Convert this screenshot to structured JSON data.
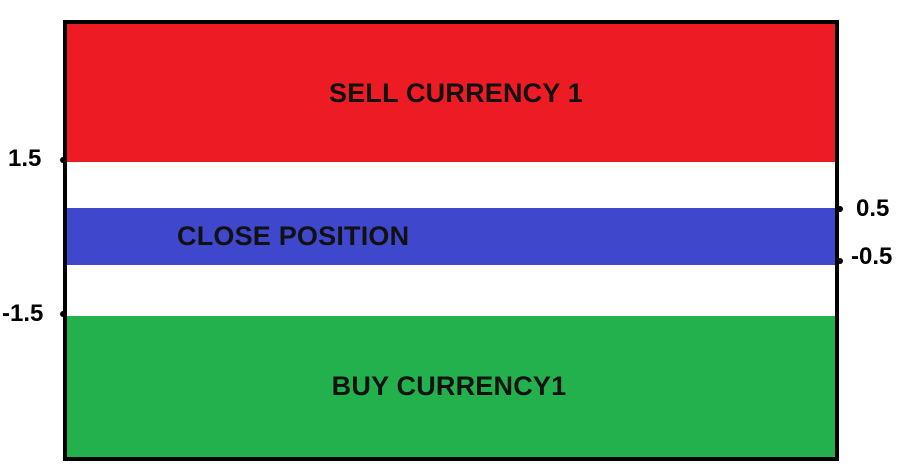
{
  "zones": {
    "sell": {
      "label": "SELL CURRENCY 1",
      "color": "#ed1c24"
    },
    "close": {
      "label": "CLOSE POSITION",
      "color": "#3f48cc"
    },
    "buy": {
      "label": "BUY CURRENCY1",
      "color": "#22b14c"
    }
  },
  "levels": {
    "left_upper": "1.5",
    "left_lower": "-1.5",
    "right_upper": "0.5",
    "right_lower": "-0.5"
  }
}
